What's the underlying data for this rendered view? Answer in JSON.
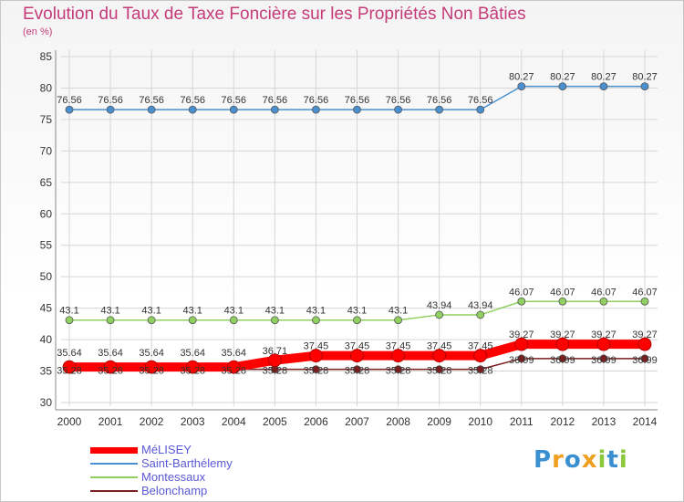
{
  "title": "Evolution du Taux de Taxe Foncière sur les Propriétés Non Bâties",
  "unit": "(en %)",
  "brand": {
    "letters": [
      {
        "ch": "P",
        "color": "#3a8fd0"
      },
      {
        "ch": "r",
        "color": "#f0a020"
      },
      {
        "ch": "o",
        "color": "#3a8fd0"
      },
      {
        "ch": "x",
        "color": "#f0a020"
      },
      {
        "ch": "i",
        "color": "#8cc83c"
      },
      {
        "ch": "t",
        "color": "#3a8fd0"
      },
      {
        "ch": "i",
        "color": "#8cc83c"
      }
    ]
  },
  "chart_data": {
    "type": "line",
    "x": [
      "2000",
      "2001",
      "2002",
      "2003",
      "2004",
      "2005",
      "2006",
      "2007",
      "2008",
      "2009",
      "2010",
      "2011",
      "2012",
      "2013",
      "2014"
    ],
    "ylim": [
      30,
      85
    ],
    "yticks": [
      30,
      35,
      40,
      45,
      50,
      55,
      60,
      65,
      70,
      75,
      80,
      85
    ],
    "grid": true,
    "legend": "bottom-left",
    "series": [
      {
        "name": "MéLISEY",
        "color": "#ff0000",
        "values": [
          35.64,
          35.64,
          35.64,
          35.64,
          35.64,
          36.71,
          37.45,
          37.45,
          37.45,
          37.45,
          37.45,
          39.27,
          39.27,
          39.27,
          39.27
        ],
        "labels": [
          "35.64",
          "35.64",
          "35.64",
          "35.64",
          "35.64",
          "36.71",
          "37.45",
          "37.45",
          "37.45",
          "37.45",
          "37.45",
          "39.27",
          "39.27",
          "39.27",
          "39.27"
        ]
      },
      {
        "name": "Saint-Barthélemy",
        "color": "#4a90d0",
        "values": [
          76.56,
          76.56,
          76.56,
          76.56,
          76.56,
          76.56,
          76.56,
          76.56,
          76.56,
          76.56,
          76.56,
          80.27,
          80.27,
          80.27,
          80.27
        ],
        "labels": [
          "76.56",
          "76.56",
          "76.56",
          "76.56",
          "76.56",
          "76.56",
          "76.56",
          "76.56",
          "76.56",
          "76.56",
          "76.56",
          "80.27",
          "80.27",
          "80.27",
          "80.27"
        ]
      },
      {
        "name": "Montessaux",
        "color": "#90d060",
        "values": [
          43.1,
          43.1,
          43.1,
          43.1,
          43.1,
          43.1,
          43.1,
          43.1,
          43.1,
          43.94,
          43.94,
          46.07,
          46.07,
          46.07,
          46.07
        ],
        "labels": [
          "43.1",
          "43.1",
          "43.1",
          "43.1",
          "43.1",
          "43.1",
          "43.1",
          "43.1",
          "43.1",
          "43.94",
          "43.94",
          "46.07",
          "46.07",
          "46.07",
          "46.07"
        ]
      },
      {
        "name": "Belonchamp",
        "color": "#7a1f1f",
        "values": [
          35.28,
          35.28,
          35.28,
          35.28,
          35.28,
          35.28,
          35.28,
          35.28,
          35.28,
          35.28,
          35.28,
          36.99,
          36.99,
          36.99,
          36.99
        ],
        "labels": [
          "35.28",
          "35.28",
          "35.28",
          "35.28",
          "35.28",
          "35.28",
          "35.28",
          "35.28",
          "35.28",
          "35.28",
          "35.28",
          "36.99",
          "36.99",
          "36.99",
          "36.99"
        ]
      }
    ]
  }
}
